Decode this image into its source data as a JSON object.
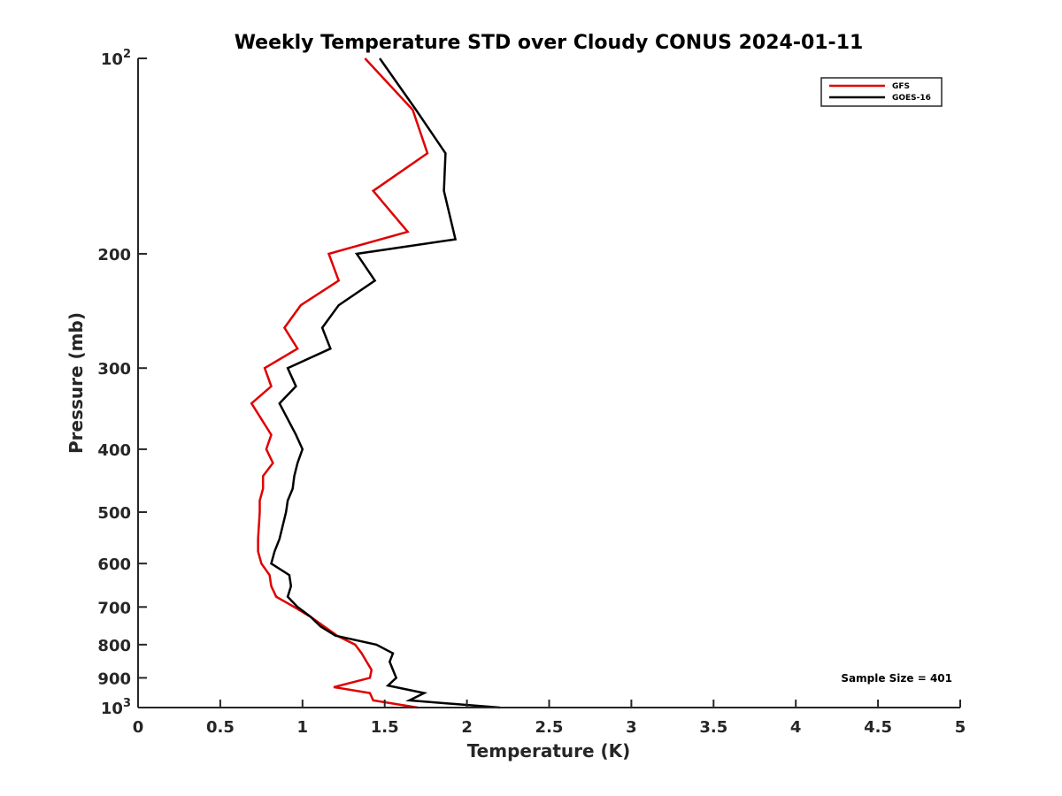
{
  "chart_data": {
    "type": "line",
    "title": "Weekly Temperature STD over Cloudy CONUS 2024-01-11",
    "xlabel": "Temperature (K)",
    "ylabel": "Pressure (mb)",
    "xlim": [
      0,
      5
    ],
    "ylim": [
      100,
      1000
    ],
    "y_scale": "log",
    "y_reversed": true,
    "grid": false,
    "legend_position": "top-right",
    "x_ticks": [
      {
        "value": 0,
        "label": "0"
      },
      {
        "value": 0.5,
        "label": "0.5"
      },
      {
        "value": 1,
        "label": "1"
      },
      {
        "value": 1.5,
        "label": "1.5"
      },
      {
        "value": 2,
        "label": "2"
      },
      {
        "value": 2.5,
        "label": "2.5"
      },
      {
        "value": 3,
        "label": "3"
      },
      {
        "value": 3.5,
        "label": "3.5"
      },
      {
        "value": 4,
        "label": "4"
      },
      {
        "value": 4.5,
        "label": "4.5"
      },
      {
        "value": 5,
        "label": "5"
      }
    ],
    "y_ticks": [
      {
        "value": 100,
        "base": "10",
        "exp": "2"
      },
      {
        "value": 200,
        "label": "200"
      },
      {
        "value": 300,
        "label": "300"
      },
      {
        "value": 400,
        "label": "400"
      },
      {
        "value": 500,
        "label": "500"
      },
      {
        "value": 600,
        "label": "600"
      },
      {
        "value": 700,
        "label": "700"
      },
      {
        "value": 800,
        "label": "800"
      },
      {
        "value": 900,
        "label": "900"
      },
      {
        "value": 1000,
        "base": "10",
        "exp": "3"
      }
    ],
    "series": [
      {
        "name": "GFS",
        "color": "#e00000",
        "x": [
          1.38,
          1.67,
          1.76,
          1.43,
          1.64,
          1.16,
          1.22,
          0.99,
          0.89,
          0.97,
          0.77,
          0.81,
          0.69,
          0.81,
          0.78,
          0.82,
          0.76,
          0.76,
          0.74,
          0.74,
          0.73,
          0.73,
          0.75,
          0.8,
          0.81,
          0.84,
          0.95,
          1.05,
          1.21,
          1.32,
          1.36,
          1.39,
          1.42,
          1.41,
          1.19,
          1.41,
          1.43,
          1.7
        ],
        "y": [
          100,
          120,
          140,
          160,
          185,
          200,
          220,
          240,
          260,
          280,
          300,
          320,
          340,
          380,
          400,
          420,
          440,
          460,
          480,
          500,
          550,
          575,
          600,
          625,
          650,
          675,
          700,
          725,
          775,
          800,
          825,
          850,
          875,
          900,
          930,
          950,
          975,
          1000
        ]
      },
      {
        "name": "GOES-16",
        "color": "#000000",
        "x": [
          1.47,
          1.69,
          1.87,
          1.86,
          1.93,
          1.33,
          1.44,
          1.22,
          1.12,
          1.17,
          0.91,
          0.96,
          0.86,
          0.96,
          1.0,
          0.97,
          0.95,
          0.94,
          0.91,
          0.9,
          0.86,
          0.83,
          0.81,
          0.92,
          0.93,
          0.91,
          0.97,
          1.05,
          1.11,
          1.2,
          1.45,
          1.55,
          1.53,
          1.55,
          1.57,
          1.52,
          1.74,
          1.65,
          2.2
        ],
        "y": [
          100,
          120,
          140,
          160,
          190,
          200,
          220,
          240,
          260,
          280,
          300,
          320,
          340,
          380,
          400,
          420,
          440,
          460,
          480,
          500,
          550,
          575,
          600,
          625,
          650,
          675,
          700,
          725,
          750,
          775,
          800,
          825,
          850,
          875,
          900,
          925,
          950,
          975,
          1000
        ]
      }
    ],
    "annotations": [
      {
        "text": "Sample Size = 401"
      }
    ]
  }
}
